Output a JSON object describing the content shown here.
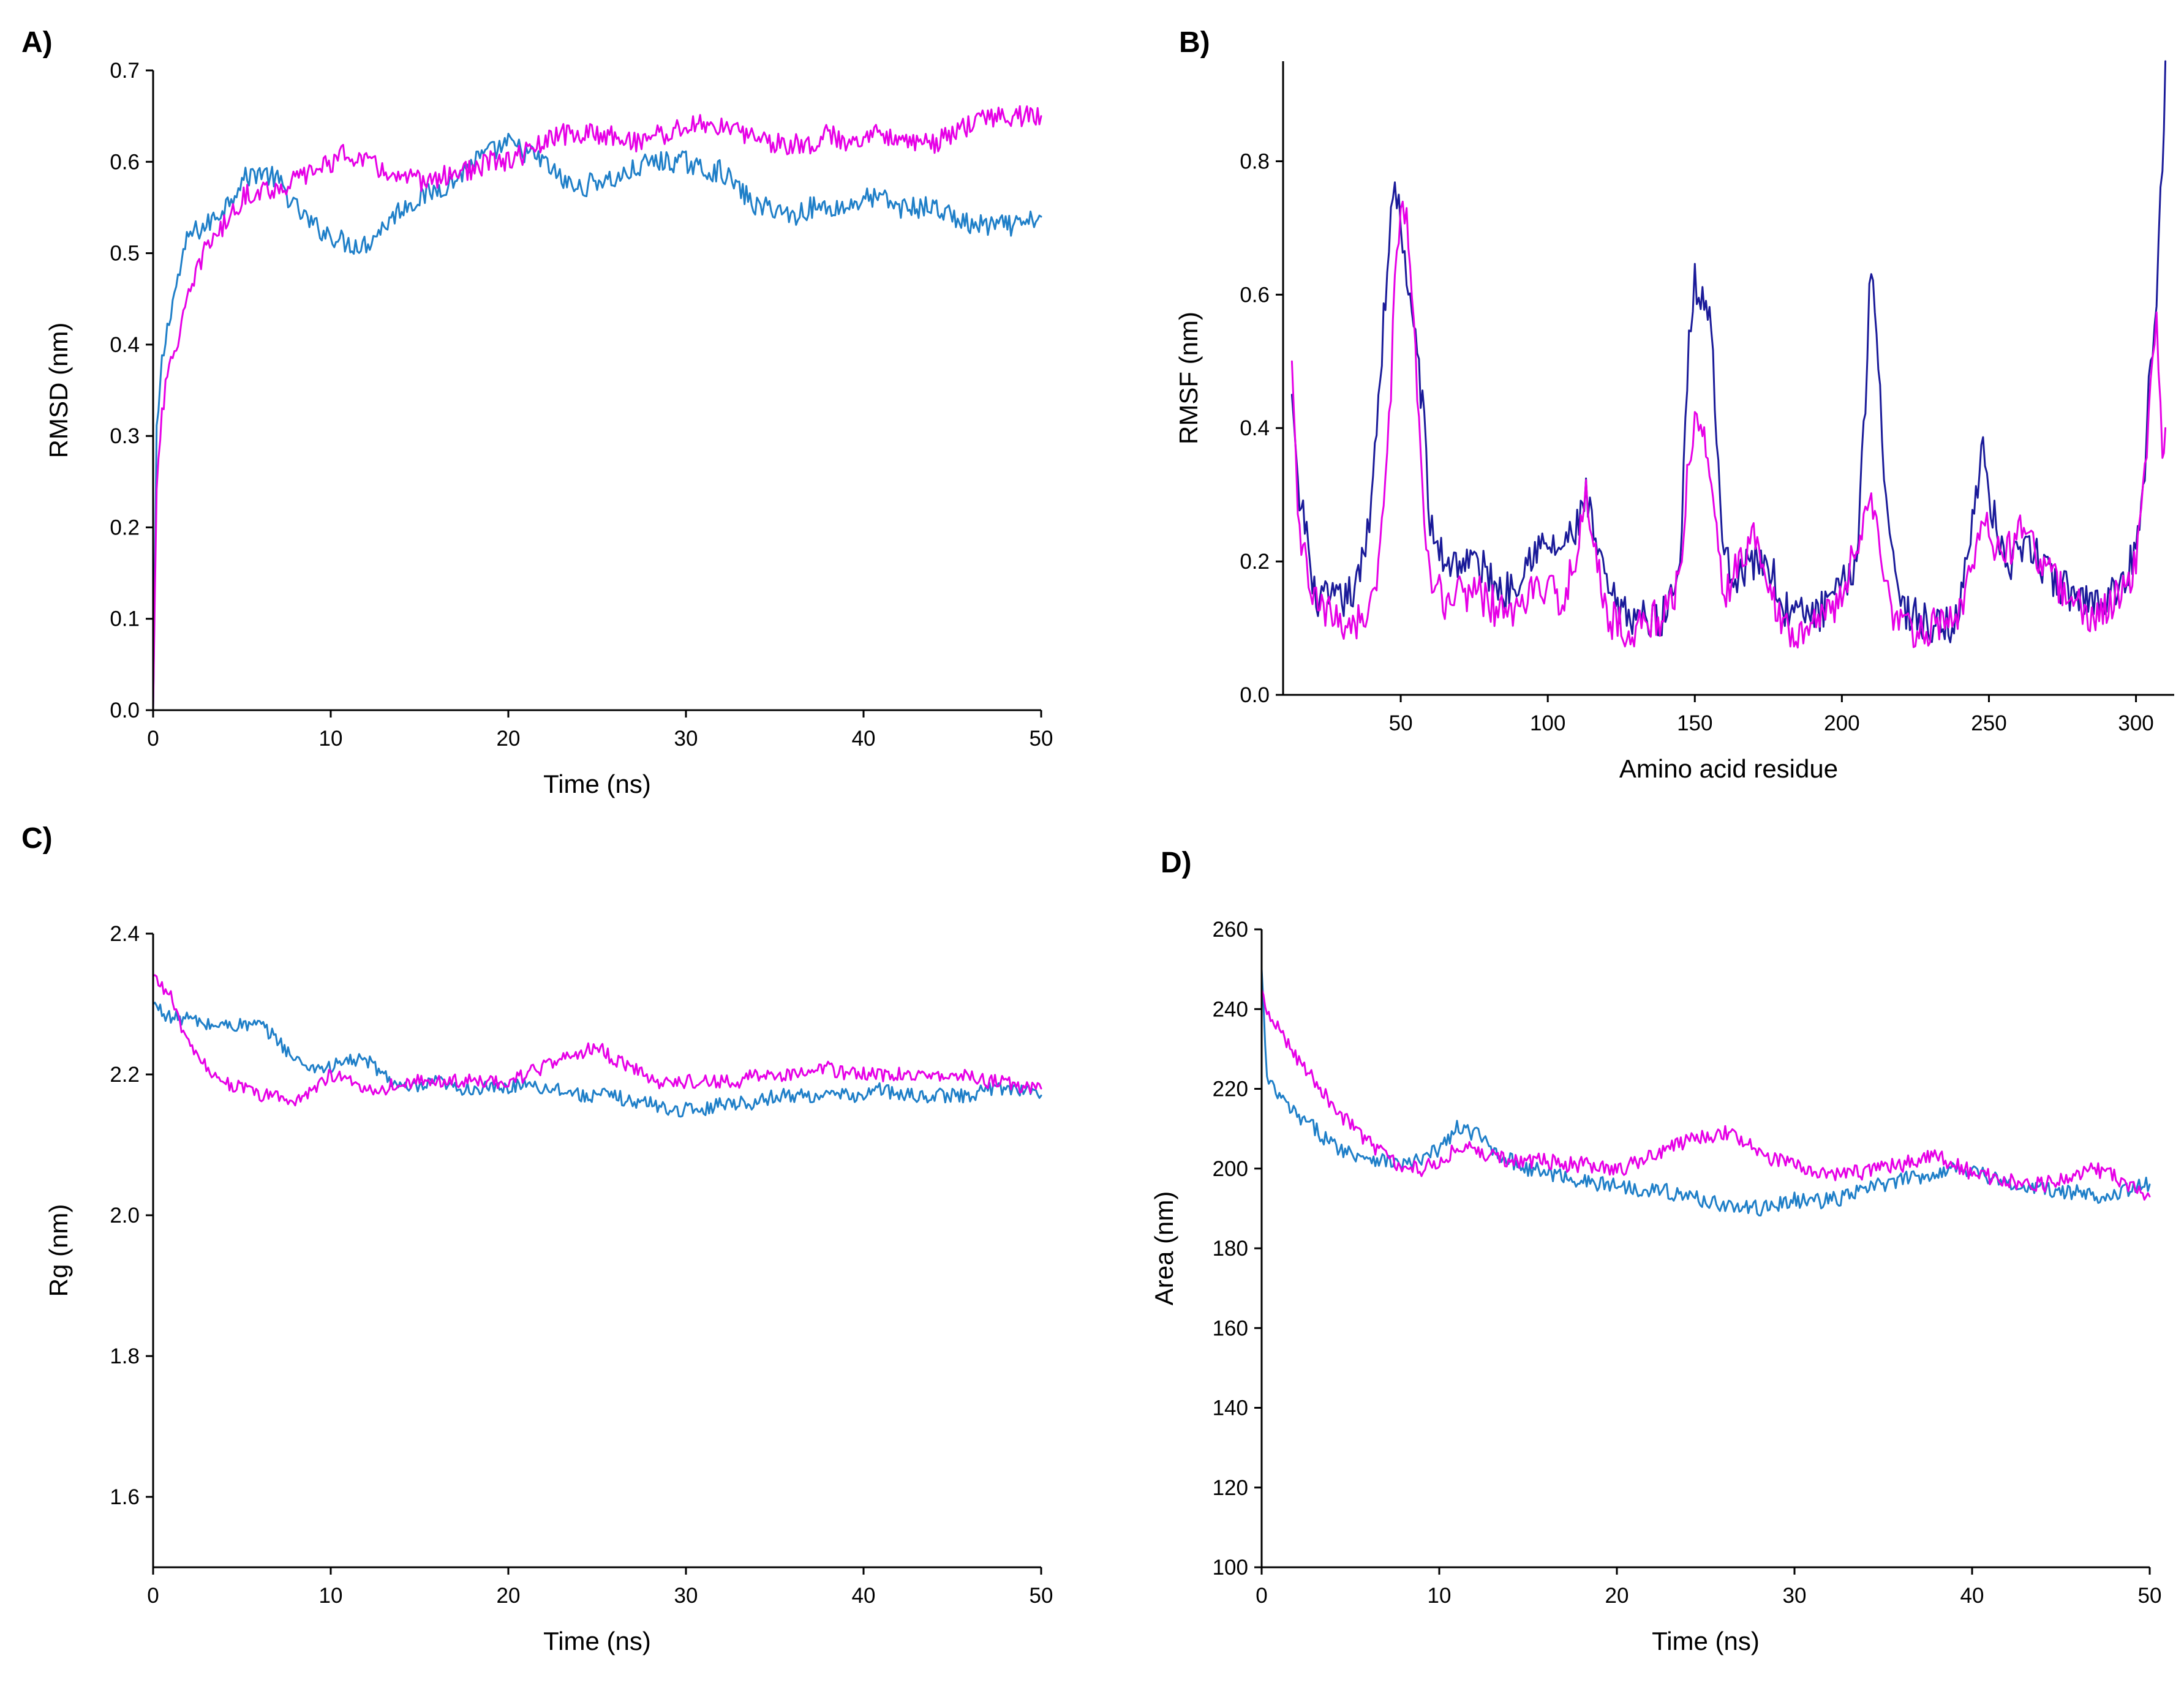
{
  "chart_data": [
    {
      "type": "line",
      "panel": "A)",
      "xlabel": "Time (ns)",
      "ylabel": "RMSD (nm)",
      "xlim": [
        0,
        50
      ],
      "ylim": [
        0,
        0.7
      ],
      "xticks": [
        0,
        10,
        20,
        30,
        40,
        50
      ],
      "yticks": [
        0.0,
        0.1,
        0.2,
        0.3,
        0.4,
        0.5,
        0.6,
        0.7
      ],
      "ytick_labels": [
        "0.0",
        "0.1",
        "0.2",
        "0.3",
        "0.4",
        "0.5",
        "0.6",
        "0.7"
      ],
      "grid": false,
      "noise": 0.012,
      "series": [
        {
          "name": "blue",
          "color": "#1f7fc8",
          "x": [
            0,
            0.2,
            0.5,
            1,
            2,
            3,
            4,
            5,
            6,
            7,
            8,
            9,
            10,
            11,
            12,
            13,
            14,
            15,
            16,
            17,
            18,
            19,
            20,
            21,
            22,
            23,
            24,
            25,
            26,
            27,
            28,
            29,
            30,
            31,
            32,
            33,
            34,
            35,
            36,
            37,
            38,
            39,
            40,
            41,
            42,
            43,
            44,
            45,
            46,
            47,
            48,
            49,
            50
          ],
          "y": [
            0.0,
            0.3,
            0.38,
            0.44,
            0.52,
            0.53,
            0.55,
            0.58,
            0.59,
            0.58,
            0.55,
            0.53,
            0.52,
            0.51,
            0.51,
            0.53,
            0.55,
            0.56,
            0.57,
            0.58,
            0.6,
            0.61,
            0.62,
            0.61,
            0.6,
            0.58,
            0.57,
            0.58,
            0.58,
            0.59,
            0.6,
            0.6,
            0.6,
            0.59,
            0.59,
            0.57,
            0.55,
            0.55,
            0.54,
            0.55,
            0.55,
            0.55,
            0.56,
            0.56,
            0.55,
            0.55,
            0.55,
            0.54,
            0.53,
            0.53,
            0.53,
            0.53,
            0.54
          ]
        },
        {
          "name": "magenta",
          "color": "#e600e6",
          "x": [
            0,
            0.2,
            0.5,
            1,
            2,
            3,
            4,
            5,
            6,
            7,
            8,
            9,
            10,
            11,
            12,
            13,
            14,
            15,
            16,
            17,
            18,
            19,
            20,
            21,
            22,
            23,
            24,
            25,
            26,
            27,
            28,
            29,
            30,
            31,
            32,
            33,
            34,
            35,
            36,
            37,
            38,
            39,
            40,
            41,
            42,
            43,
            44,
            45,
            46,
            47,
            48,
            49,
            50
          ],
          "y": [
            0.0,
            0.25,
            0.33,
            0.38,
            0.45,
            0.51,
            0.53,
            0.56,
            0.57,
            0.57,
            0.58,
            0.59,
            0.6,
            0.61,
            0.6,
            0.59,
            0.58,
            0.58,
            0.58,
            0.59,
            0.59,
            0.6,
            0.6,
            0.61,
            0.62,
            0.63,
            0.63,
            0.63,
            0.63,
            0.62,
            0.63,
            0.63,
            0.64,
            0.64,
            0.64,
            0.63,
            0.63,
            0.62,
            0.62,
            0.62,
            0.63,
            0.62,
            0.63,
            0.63,
            0.63,
            0.62,
            0.62,
            0.63,
            0.64,
            0.65,
            0.65,
            0.65,
            0.65
          ]
        }
      ]
    },
    {
      "type": "line",
      "panel": "B)",
      "xlabel": "Amino acid residue",
      "ylabel": "RMSF (nm)",
      "xlim": [
        10,
        313
      ],
      "ylim": [
        0,
        0.95
      ],
      "xticks": [
        50,
        100,
        150,
        200,
        250,
        300
      ],
      "yticks": [
        0.0,
        0.2,
        0.4,
        0.6,
        0.8
      ],
      "ytick_labels": [
        "0.0",
        "0.2",
        "0.4",
        "0.6",
        "0.8"
      ],
      "grid": false,
      "noise": 0.03,
      "series": [
        {
          "name": "dark blue",
          "color": "#1a1a99",
          "x": [
            13,
            15,
            18,
            20,
            25,
            30,
            35,
            38,
            40,
            43,
            46,
            48,
            50,
            52,
            55,
            58,
            60,
            65,
            70,
            75,
            80,
            85,
            90,
            95,
            100,
            105,
            110,
            113,
            115,
            120,
            125,
            130,
            135,
            140,
            145,
            148,
            150,
            152,
            155,
            158,
            160,
            165,
            170,
            175,
            180,
            185,
            190,
            195,
            200,
            205,
            208,
            210,
            213,
            215,
            220,
            225,
            230,
            235,
            240,
            245,
            248,
            250,
            255,
            260,
            265,
            270,
            275,
            280,
            285,
            290,
            295,
            300,
            303,
            305,
            307,
            309,
            310
          ],
          "y": [
            0.45,
            0.3,
            0.25,
            0.15,
            0.14,
            0.14,
            0.16,
            0.22,
            0.3,
            0.48,
            0.68,
            0.76,
            0.72,
            0.6,
            0.55,
            0.4,
            0.25,
            0.2,
            0.2,
            0.2,
            0.18,
            0.15,
            0.18,
            0.22,
            0.22,
            0.22,
            0.25,
            0.3,
            0.25,
            0.16,
            0.12,
            0.12,
            0.11,
            0.12,
            0.2,
            0.55,
            0.62,
            0.6,
            0.58,
            0.35,
            0.2,
            0.18,
            0.2,
            0.2,
            0.13,
            0.12,
            0.12,
            0.13,
            0.16,
            0.2,
            0.45,
            0.66,
            0.45,
            0.3,
            0.13,
            0.12,
            0.1,
            0.1,
            0.12,
            0.3,
            0.36,
            0.3,
            0.2,
            0.2,
            0.22,
            0.18,
            0.16,
            0.15,
            0.14,
            0.15,
            0.16,
            0.22,
            0.35,
            0.5,
            0.6,
            0.8,
            0.95
          ]
        },
        {
          "name": "magenta",
          "color": "#e600e6",
          "x": [
            13,
            15,
            18,
            20,
            25,
            30,
            35,
            38,
            40,
            43,
            46,
            48,
            50,
            52,
            55,
            58,
            60,
            65,
            70,
            75,
            80,
            85,
            90,
            95,
            100,
            105,
            110,
            113,
            115,
            120,
            125,
            130,
            135,
            140,
            145,
            148,
            150,
            152,
            155,
            158,
            160,
            165,
            170,
            175,
            180,
            185,
            190,
            195,
            200,
            205,
            208,
            210,
            213,
            215,
            220,
            225,
            230,
            235,
            240,
            245,
            248,
            250,
            255,
            260,
            265,
            270,
            275,
            280,
            285,
            290,
            295,
            300,
            303,
            305,
            307,
            309,
            310
          ],
          "y": [
            0.5,
            0.25,
            0.2,
            0.14,
            0.12,
            0.11,
            0.11,
            0.12,
            0.14,
            0.2,
            0.4,
            0.6,
            0.75,
            0.7,
            0.5,
            0.25,
            0.17,
            0.14,
            0.15,
            0.16,
            0.14,
            0.12,
            0.13,
            0.16,
            0.15,
            0.15,
            0.2,
            0.3,
            0.25,
            0.12,
            0.1,
            0.1,
            0.11,
            0.12,
            0.18,
            0.35,
            0.42,
            0.4,
            0.35,
            0.2,
            0.15,
            0.2,
            0.25,
            0.18,
            0.1,
            0.1,
            0.11,
            0.12,
            0.15,
            0.22,
            0.28,
            0.3,
            0.22,
            0.15,
            0.1,
            0.1,
            0.1,
            0.1,
            0.12,
            0.2,
            0.28,
            0.25,
            0.2,
            0.25,
            0.22,
            0.18,
            0.16,
            0.13,
            0.12,
            0.13,
            0.15,
            0.2,
            0.35,
            0.45,
            0.55,
            0.35,
            0.4
          ]
        }
      ]
    },
    {
      "type": "line",
      "panel": "C)",
      "xlabel": "Time (ns)",
      "ylabel": "Rg (nm)",
      "xlim": [
        0,
        50
      ],
      "ylim": [
        1.5,
        2.4
      ],
      "xticks": [
        0,
        10,
        20,
        30,
        40,
        50
      ],
      "yticks": [
        1.6,
        1.8,
        2.0,
        2.2,
        2.4
      ],
      "ytick_labels": [
        "1.6",
        "1.8",
        "2.0",
        "2.2",
        "2.4"
      ],
      "grid": false,
      "noise": 0.01,
      "series": [
        {
          "name": "blue",
          "color": "#1f7fc8",
          "x": [
            0,
            1,
            2,
            3,
            4,
            5,
            6,
            7,
            8,
            9,
            10,
            11,
            12,
            13,
            14,
            15,
            16,
            17,
            18,
            19,
            20,
            21,
            22,
            23,
            24,
            25,
            26,
            27,
            28,
            29,
            30,
            31,
            32,
            33,
            34,
            35,
            36,
            37,
            38,
            39,
            40,
            41,
            42,
            43,
            44,
            45,
            46,
            47,
            48,
            49,
            50
          ],
          "y": [
            2.3,
            2.28,
            2.28,
            2.27,
            2.27,
            2.27,
            2.27,
            2.25,
            2.22,
            2.21,
            2.21,
            2.22,
            2.22,
            2.2,
            2.18,
            2.18,
            2.19,
            2.18,
            2.18,
            2.18,
            2.18,
            2.19,
            2.18,
            2.18,
            2.17,
            2.17,
            2.17,
            2.16,
            2.16,
            2.15,
            2.15,
            2.15,
            2.16,
            2.16,
            2.16,
            2.17,
            2.17,
            2.17,
            2.17,
            2.17,
            2.17,
            2.18,
            2.17,
            2.17,
            2.17,
            2.17,
            2.17,
            2.18,
            2.18,
            2.18,
            2.17
          ]
        },
        {
          "name": "magenta",
          "color": "#e600e6",
          "x": [
            0,
            1,
            2,
            3,
            4,
            5,
            6,
            7,
            8,
            9,
            10,
            11,
            12,
            13,
            14,
            15,
            16,
            17,
            18,
            19,
            20,
            21,
            22,
            23,
            24,
            25,
            26,
            27,
            28,
            29,
            30,
            31,
            32,
            33,
            34,
            35,
            36,
            37,
            38,
            39,
            40,
            41,
            42,
            43,
            44,
            45,
            46,
            47,
            48,
            49,
            50
          ],
          "y": [
            2.34,
            2.31,
            2.24,
            2.21,
            2.19,
            2.18,
            2.17,
            2.17,
            2.16,
            2.18,
            2.2,
            2.19,
            2.18,
            2.18,
            2.19,
            2.19,
            2.19,
            2.19,
            2.19,
            2.19,
            2.19,
            2.2,
            2.21,
            2.22,
            2.23,
            2.24,
            2.22,
            2.21,
            2.19,
            2.19,
            2.19,
            2.19,
            2.19,
            2.19,
            2.2,
            2.2,
            2.2,
            2.21,
            2.21,
            2.2,
            2.2,
            2.2,
            2.2,
            2.2,
            2.2,
            2.2,
            2.2,
            2.19,
            2.19,
            2.18,
            2.18
          ]
        }
      ]
    },
    {
      "type": "line",
      "panel": "D)",
      "xlabel": "Time (ns)",
      "ylabel": "Area (nm)",
      "xlim": [
        0,
        50
      ],
      "ylim": [
        100,
        260
      ],
      "xticks": [
        0,
        10,
        20,
        30,
        40,
        50
      ],
      "yticks": [
        100,
        120,
        140,
        160,
        180,
        200,
        220,
        240,
        260
      ],
      "ytick_labels": [
        "100",
        "120",
        "140",
        "160",
        "180",
        "200",
        "220",
        "240",
        "260"
      ],
      "grid": false,
      "noise": 2,
      "series": [
        {
          "name": "blue",
          "color": "#1f7fc8",
          "x": [
            0,
            0.3,
            1,
            2,
            3,
            4,
            5,
            6,
            7,
            8,
            9,
            10,
            11,
            12,
            13,
            14,
            15,
            16,
            17,
            18,
            19,
            20,
            21,
            22,
            23,
            24,
            25,
            26,
            27,
            28,
            29,
            30,
            31,
            32,
            33,
            34,
            35,
            36,
            37,
            38,
            39,
            40,
            41,
            42,
            43,
            44,
            45,
            46,
            47,
            48,
            49,
            50
          ],
          "y": [
            250,
            222,
            218,
            213,
            210,
            206,
            204,
            203,
            202,
            201,
            202,
            205,
            210,
            209,
            205,
            202,
            200,
            199,
            198,
            197,
            196,
            196,
            195,
            195,
            194,
            193,
            192,
            191,
            190,
            190,
            191,
            192,
            192,
            192,
            193,
            195,
            196,
            197,
            198,
            199,
            200,
            200,
            198,
            196,
            195,
            195,
            194,
            194,
            193,
            194,
            195,
            196
          ]
        },
        {
          "name": "magenta",
          "color": "#e600e6",
          "x": [
            0,
            0.3,
            1,
            2,
            3,
            4,
            5,
            6,
            7,
            8,
            9,
            10,
            11,
            12,
            13,
            14,
            15,
            16,
            17,
            18,
            19,
            20,
            21,
            22,
            23,
            24,
            25,
            26,
            27,
            28,
            29,
            30,
            31,
            32,
            33,
            34,
            35,
            36,
            37,
            38,
            39,
            40,
            41,
            42,
            43,
            44,
            45,
            46,
            47,
            48,
            49,
            50
          ],
          "y": [
            245,
            238,
            235,
            228,
            222,
            216,
            211,
            207,
            203,
            200,
            200,
            202,
            205,
            205,
            203,
            202,
            202,
            202,
            201,
            201,
            200,
            200,
            201,
            203,
            205,
            207,
            208,
            209,
            207,
            204,
            202,
            201,
            200,
            199,
            199,
            199,
            200,
            201,
            202,
            203,
            201,
            199,
            198,
            197,
            196,
            196,
            197,
            199,
            200,
            198,
            195,
            193
          ]
        }
      ]
    }
  ]
}
